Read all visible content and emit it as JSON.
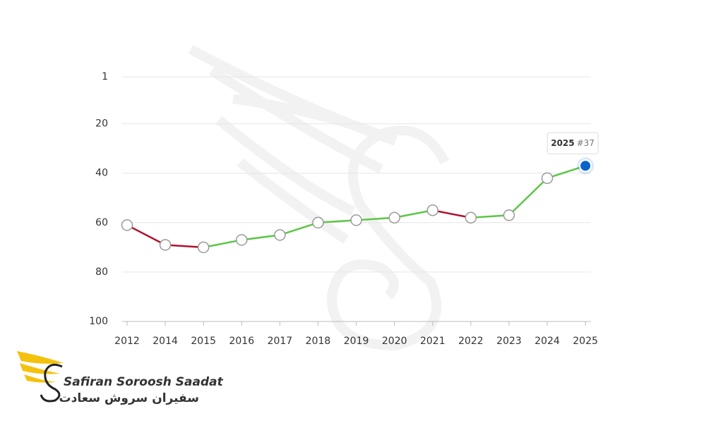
{
  "chart_data": {
    "type": "line",
    "categories": [
      "2012",
      "2014",
      "2015",
      "2016",
      "2017",
      "2018",
      "2019",
      "2020",
      "2021",
      "2022",
      "2023",
      "2024",
      "2025"
    ],
    "values": [
      61,
      69,
      70,
      67,
      65,
      60,
      59,
      58,
      55,
      58,
      57,
      42,
      37
    ],
    "ylim": [
      1,
      100
    ],
    "inverted": true,
    "yticks": [
      1,
      20,
      40,
      60,
      80,
      100
    ],
    "grid": true,
    "rise_color": "#b0102e",
    "fall_color": "#5cc646",
    "highlight_color": "#0a63c9",
    "tooltip": {
      "label": "#37"
    }
  },
  "logo": {
    "name": "Safiran Soroosh Saadat",
    "name_fa": "سفیران سروش سعادت"
  }
}
